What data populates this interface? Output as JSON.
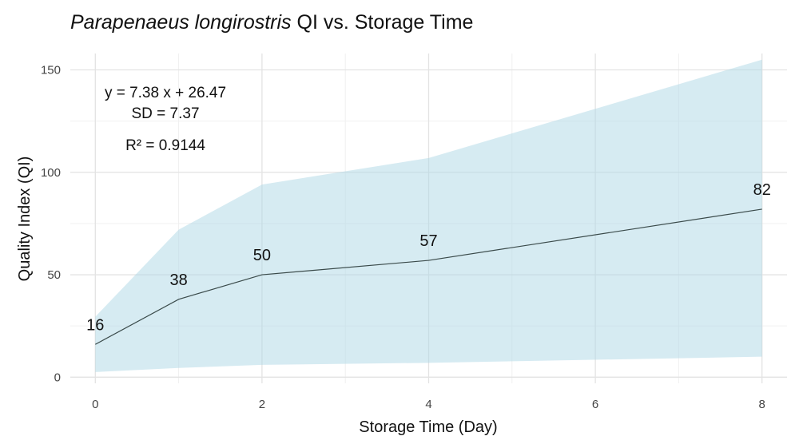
{
  "chart_data": {
    "type": "line",
    "title_species": "Parapenaeus longirostris",
    "title_rest": " QI vs. Storage Time",
    "xlabel": "Storage Time (Day)",
    "ylabel": "Quality Index (QI)",
    "xlim": [
      -0.3,
      8.3
    ],
    "ylim": [
      -3,
      158
    ],
    "x_ticks": [
      0,
      2,
      4,
      6,
      8
    ],
    "y_ticks": [
      0,
      50,
      100,
      150
    ],
    "grid": true,
    "series": [
      {
        "x": [
          0,
          1,
          2,
          4,
          8
        ],
        "values": [
          16,
          38,
          50,
          57,
          82
        ],
        "labels": [
          "16",
          "38",
          "50",
          "57",
          "82"
        ],
        "color": "#3a4a4a"
      }
    ],
    "ribbon": {
      "x": [
        0,
        1,
        2,
        4,
        8
      ],
      "lower": [
        2.5,
        4.5,
        6,
        7,
        10
      ],
      "upper": [
        29.5,
        72,
        94,
        107,
        155
      ],
      "color": "#add8e6"
    },
    "annotations": {
      "equation": "y = 7.38 x + 26.47",
      "sd": "SD = 7.37",
      "r2": "R² = 0.9144"
    }
  }
}
